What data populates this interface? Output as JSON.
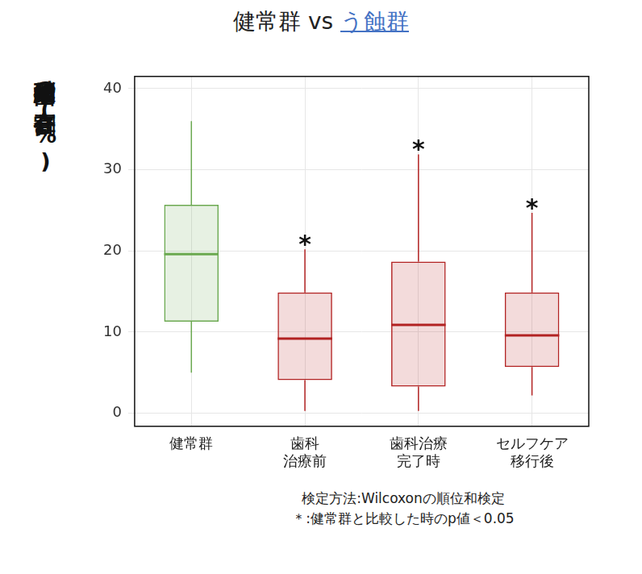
{
  "chart_data": {
    "type": "box",
    "title": [
      "健常群 vs",
      "う蝕群"
    ],
    "y_label": "硝酸還元細菌の存在割合(%)",
    "categories": [
      [
        "健常群"
      ],
      [
        "歯科",
        "治療前"
      ],
      [
        "歯科治療",
        "完了時"
      ],
      [
        "セルフケア",
        "移行後"
      ]
    ],
    "stats": {
      "min": [
        5.0,
        0.3,
        0.3,
        2.2
      ],
      "q1": [
        11.3,
        4.1,
        3.3,
        5.7
      ],
      "median": [
        19.6,
        9.2,
        10.9,
        9.6
      ],
      "q3": [
        25.7,
        14.9,
        18.7,
        14.9
      ],
      "max": [
        36.0,
        20.2,
        31.9,
        24.7
      ]
    },
    "annotations": [
      null,
      "*",
      "*",
      "*"
    ],
    "colors": [
      "#6aa84f",
      "#b22222",
      "#b22222",
      "#b22222"
    ],
    "ylim": [
      -1.6,
      41.5
    ],
    "yticks": [
      0,
      10,
      20,
      30,
      40
    ],
    "grid": true,
    "notes": [
      "検定方法:Wilcoxonの順位和検定",
      "＊:健常群と比較した時のp値＜0.05"
    ]
  }
}
